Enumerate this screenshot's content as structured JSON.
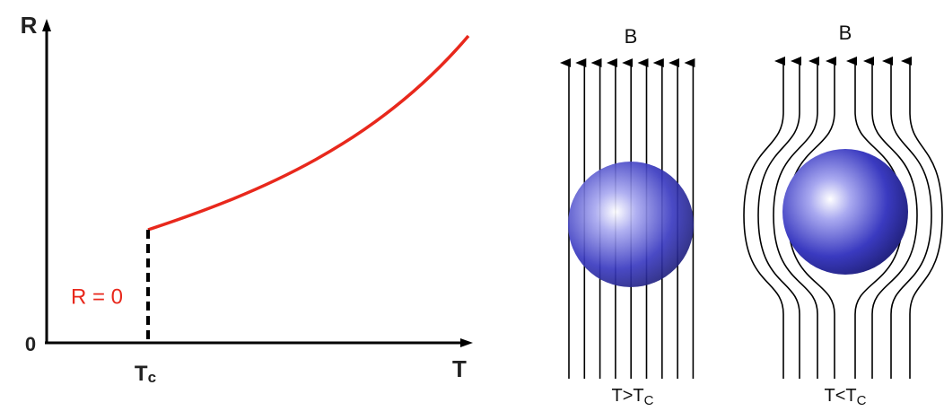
{
  "graph": {
    "y_axis_label": "R",
    "origin_label": "0",
    "x_axis_label": "T",
    "critical_label": {
      "main": "T",
      "sub": "c"
    },
    "zero_label": "R = 0"
  },
  "panels": [
    {
      "field_label": "B",
      "caption": {
        "main": "T>T",
        "sub": "C"
      }
    },
    {
      "field_label": "B",
      "caption": {
        "main": "T<T",
        "sub": "C"
      }
    }
  ]
}
